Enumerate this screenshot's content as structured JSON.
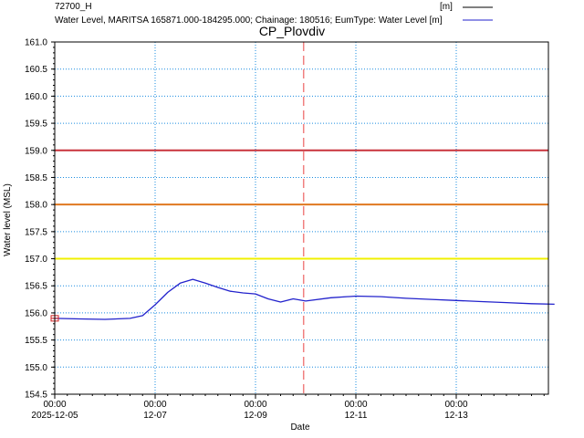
{
  "chart_data": {
    "type": "line",
    "title": "CP_Plovdiv",
    "xlabel": "Date",
    "ylabel": "Water level (MSL)",
    "ylim": [
      154.5,
      161.0
    ],
    "xlim": [
      "2025-12-05 00:00",
      "2025-12-14 23:00"
    ],
    "grid": true,
    "legend_placement": "top",
    "x_ticks": [
      {
        "time": "00:00",
        "date": "2025-12-05",
        "at": "2025-12-05 00:00"
      },
      {
        "time": "00:00",
        "date": "12-07",
        "at": "2025-12-07 00:00"
      },
      {
        "time": "00:00",
        "date": "12-09",
        "at": "2025-12-09 00:00"
      },
      {
        "time": "00:00",
        "date": "12-11",
        "at": "2025-12-11 00:00"
      },
      {
        "time": "00:00",
        "date": "12-13",
        "at": "2025-12-13 00:00"
      }
    ],
    "y_ticks": [
      "161.0",
      "160.5",
      "160.0",
      "159.5",
      "159.0",
      "158.5",
      "158.0",
      "157.5",
      "157.0",
      "156.5",
      "156.0",
      "155.5",
      "155.0",
      "154.5"
    ],
    "legend": [
      {
        "label": "72700_H",
        "unit": "[m]",
        "color": "#000000"
      },
      {
        "label": "Water Level, MARITSA 165871.000-184295.000; Chainage: 180516; EumType: Water Level [m]",
        "unit": "",
        "color": "#2222cc"
      }
    ],
    "thresholds": [
      {
        "value": 159.0,
        "color": "#c8323c"
      },
      {
        "value": 158.0,
        "color": "#e07820"
      },
      {
        "value": 157.0,
        "color": "#f0f000"
      }
    ],
    "time_marker": {
      "at": "2025-12-09 23:00",
      "color": "#f08080"
    },
    "series": [
      {
        "name": "Water Level, MARITSA 165871.000-184295.000; Chainage: 180516; EumType: Water Level [m]",
        "color": "#2222cc",
        "points": [
          [
            "2025-12-05 00:00",
            155.9
          ],
          [
            "2025-12-05 12:00",
            155.89
          ],
          [
            "2025-12-06 00:00",
            155.88
          ],
          [
            "2025-12-06 12:00",
            155.9
          ],
          [
            "2025-12-06 18:00",
            155.95
          ],
          [
            "2025-12-07 00:00",
            156.15
          ],
          [
            "2025-12-07 06:00",
            156.38
          ],
          [
            "2025-12-07 12:00",
            156.55
          ],
          [
            "2025-12-07 18:00",
            156.62
          ],
          [
            "2025-12-08 00:00",
            156.55
          ],
          [
            "2025-12-08 06:00",
            156.47
          ],
          [
            "2025-12-08 12:00",
            156.4
          ],
          [
            "2025-12-08 18:00",
            156.37
          ],
          [
            "2025-12-09 00:00",
            156.35
          ],
          [
            "2025-12-09 06:00",
            156.26
          ],
          [
            "2025-12-09 12:00",
            156.2
          ],
          [
            "2025-12-09 18:00",
            156.26
          ],
          [
            "2025-12-10 00:00",
            156.22
          ],
          [
            "2025-12-10 12:00",
            156.28
          ],
          [
            "2025-12-11 00:00",
            156.31
          ],
          [
            "2025-12-11 12:00",
            156.3
          ],
          [
            "2025-12-12 00:00",
            156.27
          ],
          [
            "2025-12-12 12:00",
            156.25
          ],
          [
            "2025-12-13 00:00",
            156.23
          ],
          [
            "2025-12-13 12:00",
            156.21
          ],
          [
            "2025-12-14 00:00",
            156.19
          ],
          [
            "2025-12-14 12:00",
            156.17
          ],
          [
            "2025-12-14 23:00",
            156.16
          ]
        ]
      }
    ]
  }
}
